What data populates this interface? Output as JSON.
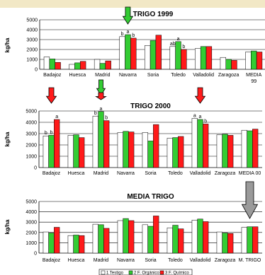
{
  "colors": {
    "top_band": "#f2e8c6",
    "panel_bg": "#ffffff",
    "plot_bg": "#ffffff",
    "grid": "#000000",
    "testigo": "#ffffff",
    "organico": "#33cc33",
    "quimico": "#ff1a1a",
    "arrow_red": "#ff1a1a",
    "arrow_green": "#33cc33",
    "arrow_gray": "#9a9a9a"
  },
  "legend": {
    "items": [
      {
        "label": "1 Testigo",
        "color": "#ffffff"
      },
      {
        "label": "2 F. Orgánico",
        "color": "#33cc33"
      },
      {
        "label": "3 F. Químico",
        "color": "#ff1a1a"
      }
    ]
  },
  "arrows": [
    {
      "chart": 0,
      "category": "Navarra",
      "color": "green"
    },
    {
      "chart": 1,
      "category": "Badajoz",
      "color": "red"
    },
    {
      "chart": 1,
      "category": "Madrid",
      "color": "green"
    },
    {
      "chart": 1,
      "category": "Madrid",
      "color": "red"
    },
    {
      "chart": 1,
      "category": "Valladolid",
      "color": "red"
    },
    {
      "chart": 2,
      "category": "M. TRIGO",
      "color": "gray"
    }
  ],
  "chart_data": [
    {
      "type": "bar",
      "title": "TRIGO 1999",
      "ylabel": "kg/ha",
      "xlabel": "",
      "ylim": [
        0,
        5000
      ],
      "yticks": [
        0,
        1000,
        2000,
        3000,
        4000,
        5000
      ],
      "categories": [
        "Badajoz",
        "Huesca",
        "Madrid",
        "Navarra",
        "Soria",
        "Toledo",
        "Valladolid",
        "Zaragoza",
        "MEDIA\n99"
      ],
      "category_labels": [
        [
          "Badajoz"
        ],
        [
          "Huesca"
        ],
        [
          "Madrid"
        ],
        [
          "Navarra"
        ],
        [
          "Soria"
        ],
        [
          "Toledo"
        ],
        [
          "Valladolid"
        ],
        [
          "Zaragoza"
        ],
        [
          "MEDIA",
          "99"
        ]
      ],
      "series": [
        {
          "name": "1 Testigo",
          "values": [
            1250,
            500,
            1000,
            3300,
            2400,
            2300,
            2100,
            1200,
            1750
          ]
        },
        {
          "name": "2 F. Orgánico",
          "values": [
            1050,
            650,
            600,
            3500,
            2900,
            2800,
            2300,
            1000,
            1850
          ]
        },
        {
          "name": "3 F. Químico",
          "values": [
            700,
            800,
            850,
            3150,
            3450,
            2000,
            2300,
            900,
            1750
          ]
        }
      ],
      "annotations": [
        {
          "category": "Navarra",
          "series": 0,
          "text": "b"
        },
        {
          "category": "Navarra",
          "series": 1,
          "text": "a"
        },
        {
          "category": "Navarra",
          "series": 2,
          "text": "b"
        },
        {
          "category": "Toledo",
          "series": 0,
          "text": "ab"
        },
        {
          "category": "Toledo",
          "series": 1,
          "text": "a"
        },
        {
          "category": "Toledo",
          "series": 2,
          "text": "b"
        }
      ],
      "grid": true
    },
    {
      "type": "bar",
      "title": "TRIGO 2000",
      "ylabel": "kg/ha",
      "xlabel": "",
      "ylim": [
        0,
        5000
      ],
      "yticks": [
        0,
        1000,
        2000,
        3000,
        4000,
        5000
      ],
      "categories": [
        "Badajoz",
        "Huesca",
        "Madrid",
        "Navarra",
        "Soria",
        "Toledo",
        "Valladolid",
        "Zaragoza",
        "MEDIA 00"
      ],
      "category_labels": [
        [
          "Badajoz"
        ],
        [
          "Huesca"
        ],
        [
          "Madrid"
        ],
        [
          "Navarra"
        ],
        [
          "Soria"
        ],
        [
          "Toledo"
        ],
        [
          "Valladolid"
        ],
        [
          "Zaragoza"
        ],
        [
          "MEDIA 00"
        ]
      ],
      "series": [
        {
          "name": "1 Testigo",
          "values": [
            2800,
            2850,
            4550,
            3100,
            3100,
            2600,
            4350,
            2900,
            3300
          ]
        },
        {
          "name": "2 F. Orgánico",
          "values": [
            2850,
            2900,
            4950,
            3200,
            2350,
            2650,
            4250,
            2950,
            3250
          ]
        },
        {
          "name": "3 F. Químico",
          "values": [
            4250,
            2650,
            4150,
            3150,
            3800,
            2750,
            3850,
            2850,
            3400
          ]
        }
      ],
      "annotations": [
        {
          "category": "Badajoz",
          "series": 0,
          "text": "b"
        },
        {
          "category": "Badajoz",
          "series": 1,
          "text": "b"
        },
        {
          "category": "Badajoz",
          "series": 2,
          "text": "a"
        },
        {
          "category": "Madrid",
          "series": 0,
          "text": "b"
        },
        {
          "category": "Madrid",
          "series": 1,
          "text": "a"
        },
        {
          "category": "Madrid",
          "series": 2,
          "text": "b"
        },
        {
          "category": "Valladolid",
          "series": 0,
          "text": "a"
        },
        {
          "category": "Valladolid",
          "series": 1,
          "text": "a"
        },
        {
          "category": "Valladolid",
          "series": 2,
          "text": "b"
        }
      ],
      "grid": true
    },
    {
      "type": "bar",
      "title": "MEDIA TRIGO",
      "ylabel": "kg/ha",
      "xlabel": "",
      "ylim": [
        0,
        5000
      ],
      "yticks": [
        0,
        1000,
        2000,
        3000,
        4000,
        5000
      ],
      "categories": [
        "Badajoz",
        "Huesca",
        "Madrid",
        "Navarra",
        "Soria",
        "Toledo",
        "Valladolid",
        "Zaragoza",
        "M. TRIGO"
      ],
      "category_labels": [
        [
          "Badajoz"
        ],
        [
          "Huesca"
        ],
        [
          "Madrid"
        ],
        [
          "Navarra"
        ],
        [
          "Soria"
        ],
        [
          "Toledo"
        ],
        [
          "Valladolid"
        ],
        [
          "Zaragoza"
        ],
        [
          "M. TRIGO"
        ]
      ],
      "series": [
        {
          "name": "1 Testigo",
          "values": [
            2050,
            1700,
            2800,
            3150,
            2750,
            2450,
            3200,
            2050,
            2500
          ]
        },
        {
          "name": "2 F. Orgánico",
          "values": [
            1950,
            1750,
            2750,
            3350,
            2600,
            2700,
            3300,
            1950,
            2550
          ]
        },
        {
          "name": "3 F. Químico",
          "values": [
            2500,
            1700,
            2400,
            3150,
            3600,
            2350,
            3050,
            1900,
            2550
          ]
        }
      ],
      "annotations": [],
      "grid": true
    }
  ]
}
